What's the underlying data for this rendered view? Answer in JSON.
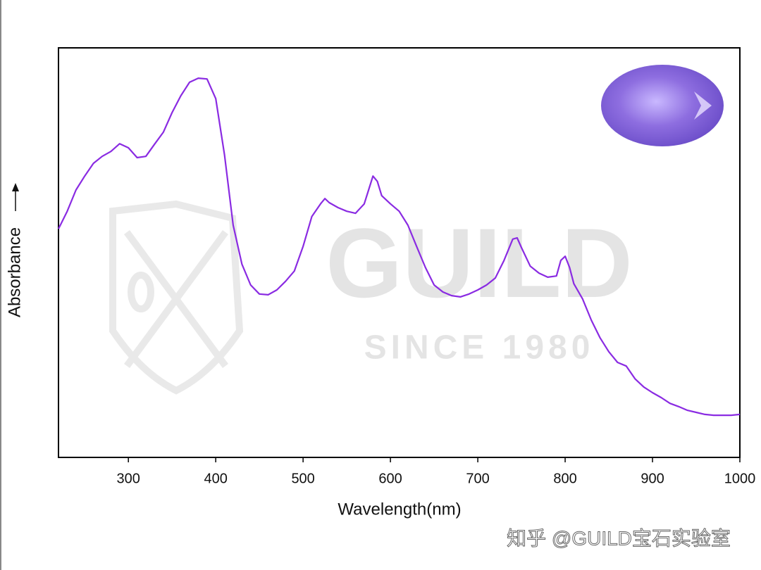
{
  "chart_data": {
    "type": "line",
    "x_label": "Wavelength(nm)",
    "y_label": "Absorbance",
    "xlim": [
      220,
      1000
    ],
    "xticks": [
      300,
      400,
      500,
      600,
      700,
      800,
      900,
      1000
    ],
    "ylim": [
      0,
      1
    ],
    "grid": false,
    "annotations": [
      "GUILD",
      "SINCE 1980",
      "知乎 @GUILD宝石实验室"
    ],
    "series": [
      {
        "color": "#8a2be2",
        "x": [
          220,
          230,
          240,
          250,
          260,
          270,
          280,
          290,
          300,
          310,
          320,
          330,
          340,
          350,
          360,
          370,
          380,
          390,
          400,
          410,
          420,
          430,
          440,
          450,
          460,
          470,
          480,
          490,
          500,
          510,
          520,
          525,
          530,
          540,
          550,
          560,
          570,
          575,
          580,
          585,
          590,
          600,
          610,
          620,
          630,
          640,
          650,
          660,
          670,
          680,
          690,
          700,
          710,
          720,
          730,
          740,
          745,
          750,
          760,
          770,
          780,
          790,
          795,
          800,
          805,
          810,
          820,
          830,
          840,
          850,
          860,
          870,
          880,
          890,
          900,
          910,
          920,
          930,
          940,
          950,
          960,
          970,
          980,
          990,
          1000
        ],
        "values": [
          0.558,
          0.601,
          0.653,
          0.687,
          0.718,
          0.735,
          0.747,
          0.766,
          0.756,
          0.732,
          0.735,
          0.765,
          0.794,
          0.842,
          0.883,
          0.916,
          0.926,
          0.924,
          0.876,
          0.739,
          0.567,
          0.472,
          0.421,
          0.399,
          0.397,
          0.409,
          0.43,
          0.455,
          0.515,
          0.588,
          0.619,
          0.632,
          0.622,
          0.61,
          0.601,
          0.596,
          0.619,
          0.653,
          0.687,
          0.674,
          0.639,
          0.619,
          0.601,
          0.567,
          0.515,
          0.464,
          0.421,
          0.404,
          0.395,
          0.392,
          0.399,
          0.409,
          0.421,
          0.438,
          0.481,
          0.533,
          0.536,
          0.512,
          0.467,
          0.45,
          0.44,
          0.443,
          0.481,
          0.491,
          0.464,
          0.424,
          0.387,
          0.335,
          0.292,
          0.258,
          0.232,
          0.223,
          0.192,
          0.172,
          0.158,
          0.146,
          0.132,
          0.124,
          0.115,
          0.11,
          0.105,
          0.103,
          0.103,
          0.103,
          0.105
        ]
      }
    ]
  }
}
